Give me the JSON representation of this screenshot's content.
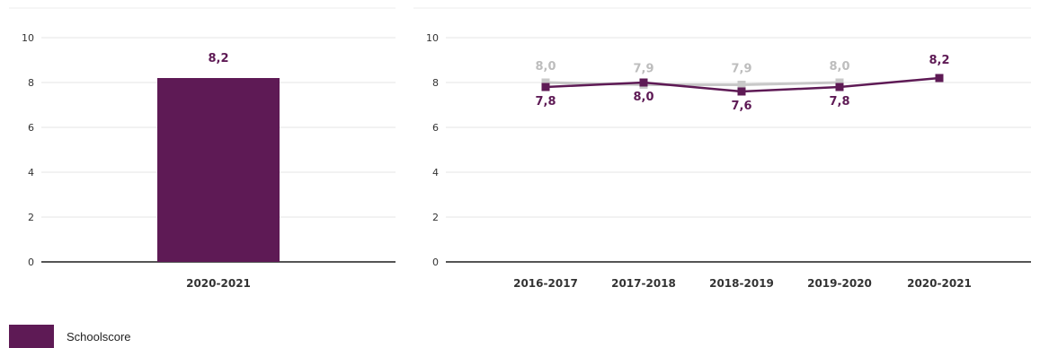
{
  "colors": {
    "school": "#5e1a55",
    "comparison": "#c8c8c8",
    "comparison_label": "#bdbdbd",
    "grid": "#e6e6e6",
    "axis": "#555555"
  },
  "legend": {
    "school_label": "Schoolscore"
  },
  "chart_data": [
    {
      "type": "bar",
      "categories": [
        "2020-2021"
      ],
      "series": [
        {
          "name": "Schoolscore",
          "values": [
            8.2
          ],
          "labels": [
            "8,2"
          ]
        }
      ],
      "ylim": [
        0,
        10
      ],
      "yticks": [
        0,
        2,
        4,
        6,
        8,
        10
      ],
      "ytick_labels": [
        "0",
        "2",
        "4",
        "6",
        "8",
        "10"
      ],
      "grid": true
    },
    {
      "type": "line",
      "categories": [
        "2016-2017",
        "2017-2018",
        "2018-2019",
        "2019-2020",
        "2020-2021"
      ],
      "series": [
        {
          "name": "Schoolscore",
          "values": [
            7.8,
            8.0,
            7.6,
            7.8,
            8.2
          ],
          "labels": [
            "7,8",
            "8,0",
            "7,6",
            "7,8",
            "8,2"
          ]
        },
        {
          "values": [
            8.0,
            7.9,
            7.9,
            8.0,
            null
          ],
          "labels": [
            "8,0",
            "7,9",
            "7,9",
            "8,0",
            ""
          ]
        }
      ],
      "ylim": [
        0,
        10
      ],
      "yticks": [
        0,
        2,
        4,
        6,
        8,
        10
      ],
      "ytick_labels": [
        "0",
        "2",
        "4",
        "6",
        "8",
        "10"
      ],
      "grid": true
    }
  ]
}
